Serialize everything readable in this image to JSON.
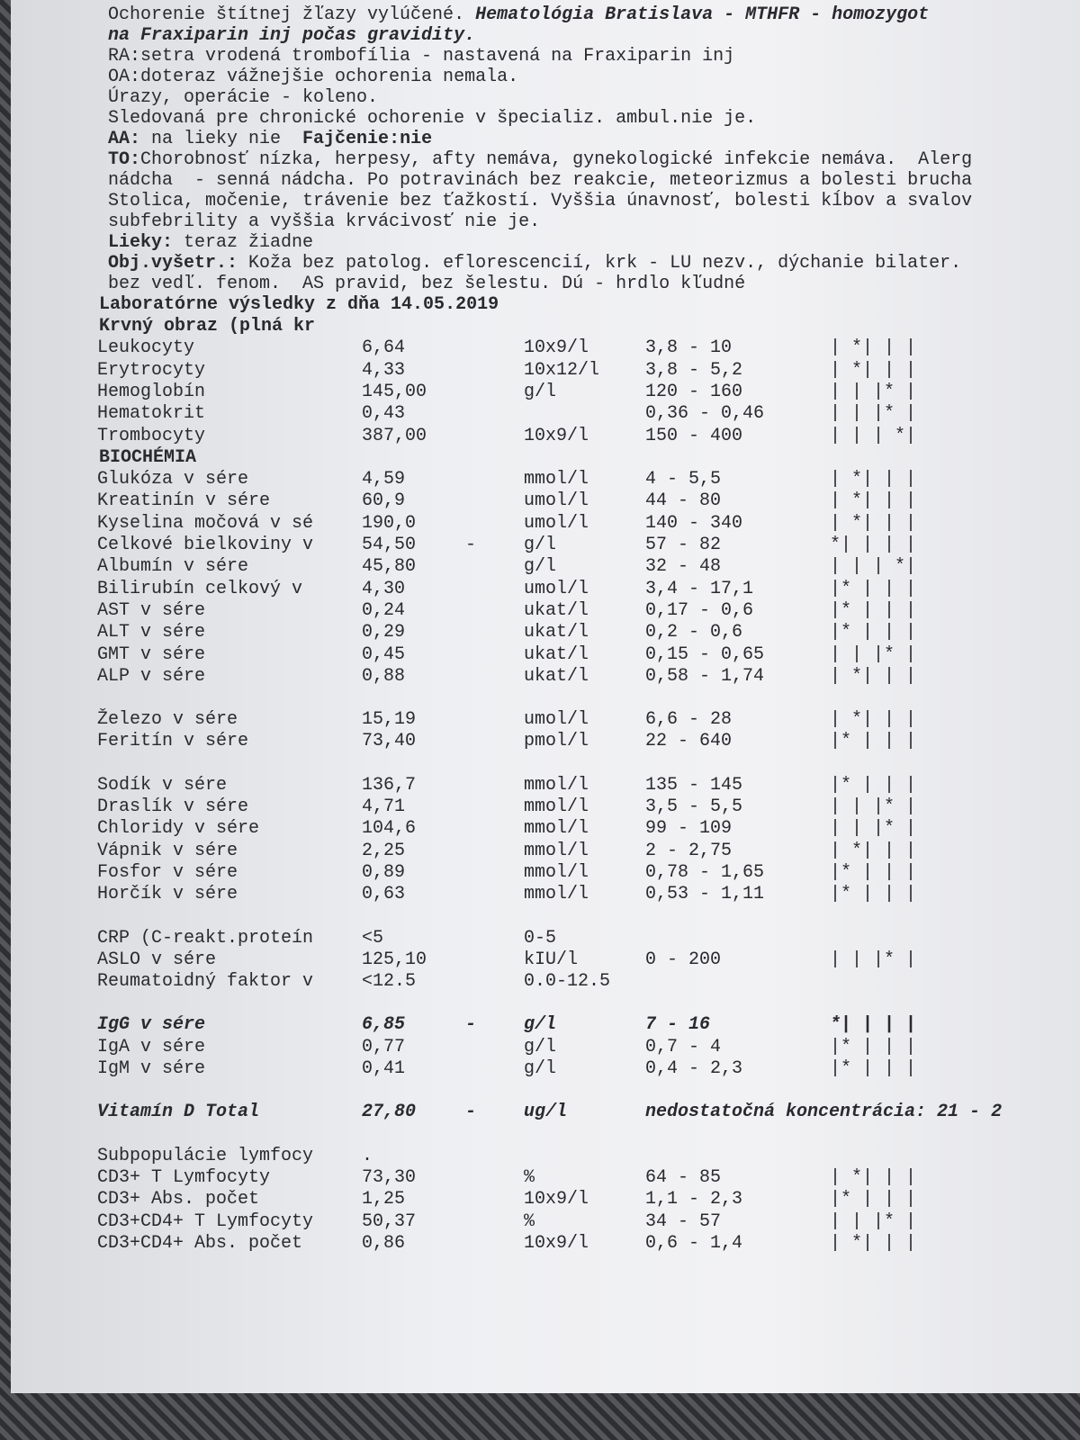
{
  "header": {
    "lines": [
      [
        {
          "text": "Ochorenie štítnej žľazy vylúčené. "
        },
        {
          "text": "Hematológia Bratislava - MTHFR - homozygot",
          "style": "bi"
        }
      ],
      [
        {
          "text": "na Fraxiparin inj počas gravidity.",
          "style": "bi"
        }
      ],
      [
        {
          "text": "RA:setra vrodená trombofília - nastavená na Fraxiparin inj"
        }
      ],
      [
        {
          "text": "OA:doteraz vážnejšie ochorenia nemala."
        }
      ],
      [
        {
          "text": "Úrazy, operácie - koleno."
        }
      ],
      [
        {
          "text": "Sledovaná pre chronické ochorenie v špecializ. ambul.nie je."
        }
      ],
      [
        {
          "text": "AA:",
          "style": "b"
        },
        {
          "text": " na lieky nie  "
        },
        {
          "text": "Fajčenie:nie",
          "style": "b"
        }
      ],
      [
        {
          "text": "TO:",
          "style": "b"
        },
        {
          "text": "Chorobnosť nízka, herpesy, afty nemáva, gynekologické infekcie nemáva.  Alerg"
        }
      ],
      [
        {
          "text": "nádcha  - senná nádcha. Po potravinách bez reakcie, meteorizmus a bolesti brucha"
        }
      ],
      [
        {
          "text": "Stolica, močenie, trávenie bez ťažkostí. Vyššia únavnosť, bolesti kĺbov a svalov"
        }
      ],
      [
        {
          "text": "subfebrility a vyššia krvácivosť nie je."
        }
      ],
      [
        {
          "text": "Lieky:",
          "style": "b"
        },
        {
          "text": " teraz žiadne"
        }
      ],
      [
        {
          "text": "Obj.vyšetr.:",
          "style": "b"
        },
        {
          "text": " Koža bez patolog. eflorescencií, krk - LU nezv., dýchanie bilater."
        }
      ],
      [
        {
          "text": "bez vedľ. fenom.  AS pravid, bez šelestu. Dú - hrdlo kľudné"
        }
      ]
    ]
  },
  "lab": {
    "title": "Laboratórne výsledky z dňa 14.05.2019",
    "groups": [
      {
        "heading": "Krvný obraz (plná kr",
        "rows": [
          {
            "name": "Leukocyty",
            "value": "6,64",
            "unit": "10x9/l",
            "range": "3,8 - 10",
            "scale": "| *| | |"
          },
          {
            "name": "Erytrocyty",
            "value": "4,33",
            "unit": "10x12/l",
            "range": "3,8 - 5,2",
            "scale": "| *| | |"
          },
          {
            "name": "Hemoglobín",
            "value": "145,00",
            "unit": "g/l",
            "range": "120 - 160",
            "scale": "| | |* |"
          },
          {
            "name": "Hematokrit",
            "value": "0,43",
            "range": "0,36 - 0,46",
            "scale": "| | |* |"
          },
          {
            "name": "Trombocyty",
            "value": "387,00",
            "unit": "10x9/l",
            "range": "150 - 400",
            "scale": "| | | *|"
          }
        ]
      },
      {
        "heading": "BIOCHÉMIA",
        "rows": [
          {
            "name": "Glukóza v sére",
            "value": "4,59",
            "unit": "mmol/l",
            "range": "4 - 5,5",
            "scale": "| *| | |"
          },
          {
            "name": "Kreatinín v sére",
            "value": "60,9",
            "unit": "umol/l",
            "range": "44 - 80",
            "scale": "| *| | |"
          },
          {
            "name": "Kyselina močová v sé",
            "value": "190,0",
            "unit": "umol/l",
            "range": "140 - 340",
            "scale": "| *| | |"
          },
          {
            "name": "Celkové bielkoviny v",
            "value": "54,50",
            "flag": "-",
            "unit": "g/l",
            "range": "57 - 82",
            "scale": "*| | | |"
          },
          {
            "name": "Albumín v sére",
            "value": "45,80",
            "unit": "g/l",
            "range": "32 - 48",
            "scale": "| | | *|"
          },
          {
            "name": "Bilirubín celkový v",
            "value": "4,30",
            "unit": "umol/l",
            "range": "3,4 - 17,1",
            "scale": "|* | | |"
          },
          {
            "name": "AST v sére",
            "value": "0,24",
            "unit": "ukat/l",
            "range": "0,17 - 0,6",
            "scale": "|* | | |"
          },
          {
            "name": "ALT v sére",
            "value": "0,29",
            "unit": "ukat/l",
            "range": "0,2 - 0,6",
            "scale": "|* | | |"
          },
          {
            "name": "GMT v sére",
            "value": "0,45",
            "unit": "ukat/l",
            "range": "0,15 - 0,65",
            "scale": "| | |* |"
          },
          {
            "name": "ALP v sére",
            "value": "0,88",
            "unit": "ukat/l",
            "range": "0,58 - 1,74",
            "scale": "| *| | |"
          }
        ]
      },
      {
        "rows": [
          {
            "name": "Železo v sére",
            "value": "15,19",
            "unit": "umol/l",
            "range": "6,6 - 28",
            "scale": "| *| | |"
          },
          {
            "name": "Feritín v sére",
            "value": "73,40",
            "unit": "pmol/l",
            "range": "22 - 640",
            "scale": "|* | | |"
          }
        ]
      },
      {
        "rows": [
          {
            "name": "Sodík v sére",
            "value": "136,7",
            "unit": "mmol/l",
            "range": "135 - 145",
            "scale": "|* | | |"
          },
          {
            "name": "Draslík v sére",
            "value": "4,71",
            "unit": "mmol/l",
            "range": "3,5 - 5,5",
            "scale": "| | |* |"
          },
          {
            "name": "Chloridy v sére",
            "value": "104,6",
            "unit": "mmol/l",
            "range": "99 - 109",
            "scale": "| | |* |"
          },
          {
            "name": "Vápnik v sére",
            "value": "2,25",
            "unit": "mmol/l",
            "range": "2 - 2,75",
            "scale": "| *| | |"
          },
          {
            "name": "Fosfor v sére",
            "value": "0,89",
            "unit": "mmol/l",
            "range": "0,78 - 1,65",
            "scale": "|* | | |"
          },
          {
            "name": "Horčík v sére",
            "value": "0,63",
            "unit": "mmol/l",
            "range": "0,53 - 1,11",
            "scale": "|* | | |"
          }
        ]
      },
      {
        "rows": [
          {
            "name": "CRP (C-reakt.proteín",
            "value": "<5",
            "unit": "0-5"
          },
          {
            "name": "ASLO v sére",
            "value": "125,10",
            "unit": "kIU/l",
            "range": "0 - 200",
            "scale": "| | |* |"
          },
          {
            "name": "Reumatoidný faktor v",
            "value": "<12.5",
            "unit": "0.0-12.5"
          }
        ]
      },
      {
        "rows": [
          {
            "name": "IgG v sére",
            "value": "6,85",
            "flag": "-",
            "unit": "g/l",
            "range": "7 - 16",
            "scale": "*| | | |",
            "style": "bi"
          },
          {
            "name": "IgA v sére",
            "value": "0,77",
            "unit": "g/l",
            "range": "0,7 - 4",
            "scale": "|* | | |"
          },
          {
            "name": "IgM v sére",
            "value": "0,41",
            "unit": "g/l",
            "range": "0,4 - 2,3",
            "scale": "|* | | |"
          }
        ]
      },
      {
        "rows": [
          {
            "name": "Vitamín D Total",
            "value": "27,80",
            "flag": "-",
            "unit": "ug/l",
            "range": "nedostatočná koncentrácia: 21 - 2",
            "style": "bi"
          }
        ]
      },
      {
        "rows": [
          {
            "name": "Subpopulácie lymfocy",
            "value": "."
          },
          {
            "name": "CD3+ T Lymfocyty",
            "value": "73,30",
            "unit": "%",
            "range": "64 - 85",
            "scale": "| *| | |"
          },
          {
            "name": "CD3+ Abs. počet",
            "value": "1,25",
            "unit": "10x9/l",
            "range": "1,1 - 2,3",
            "scale": "|* | | |"
          },
          {
            "name": "CD3+CD4+ T Lymfocyty",
            "value": "50,37",
            "unit": "%",
            "range": "34 - 57",
            "scale": "| | |* |"
          },
          {
            "name": "CD3+CD4+ Abs. počet",
            "value": "0,86",
            "unit": "10x9/l",
            "range": "0,6 - 1,4",
            "scale": "| *| | |"
          }
        ]
      }
    ]
  }
}
